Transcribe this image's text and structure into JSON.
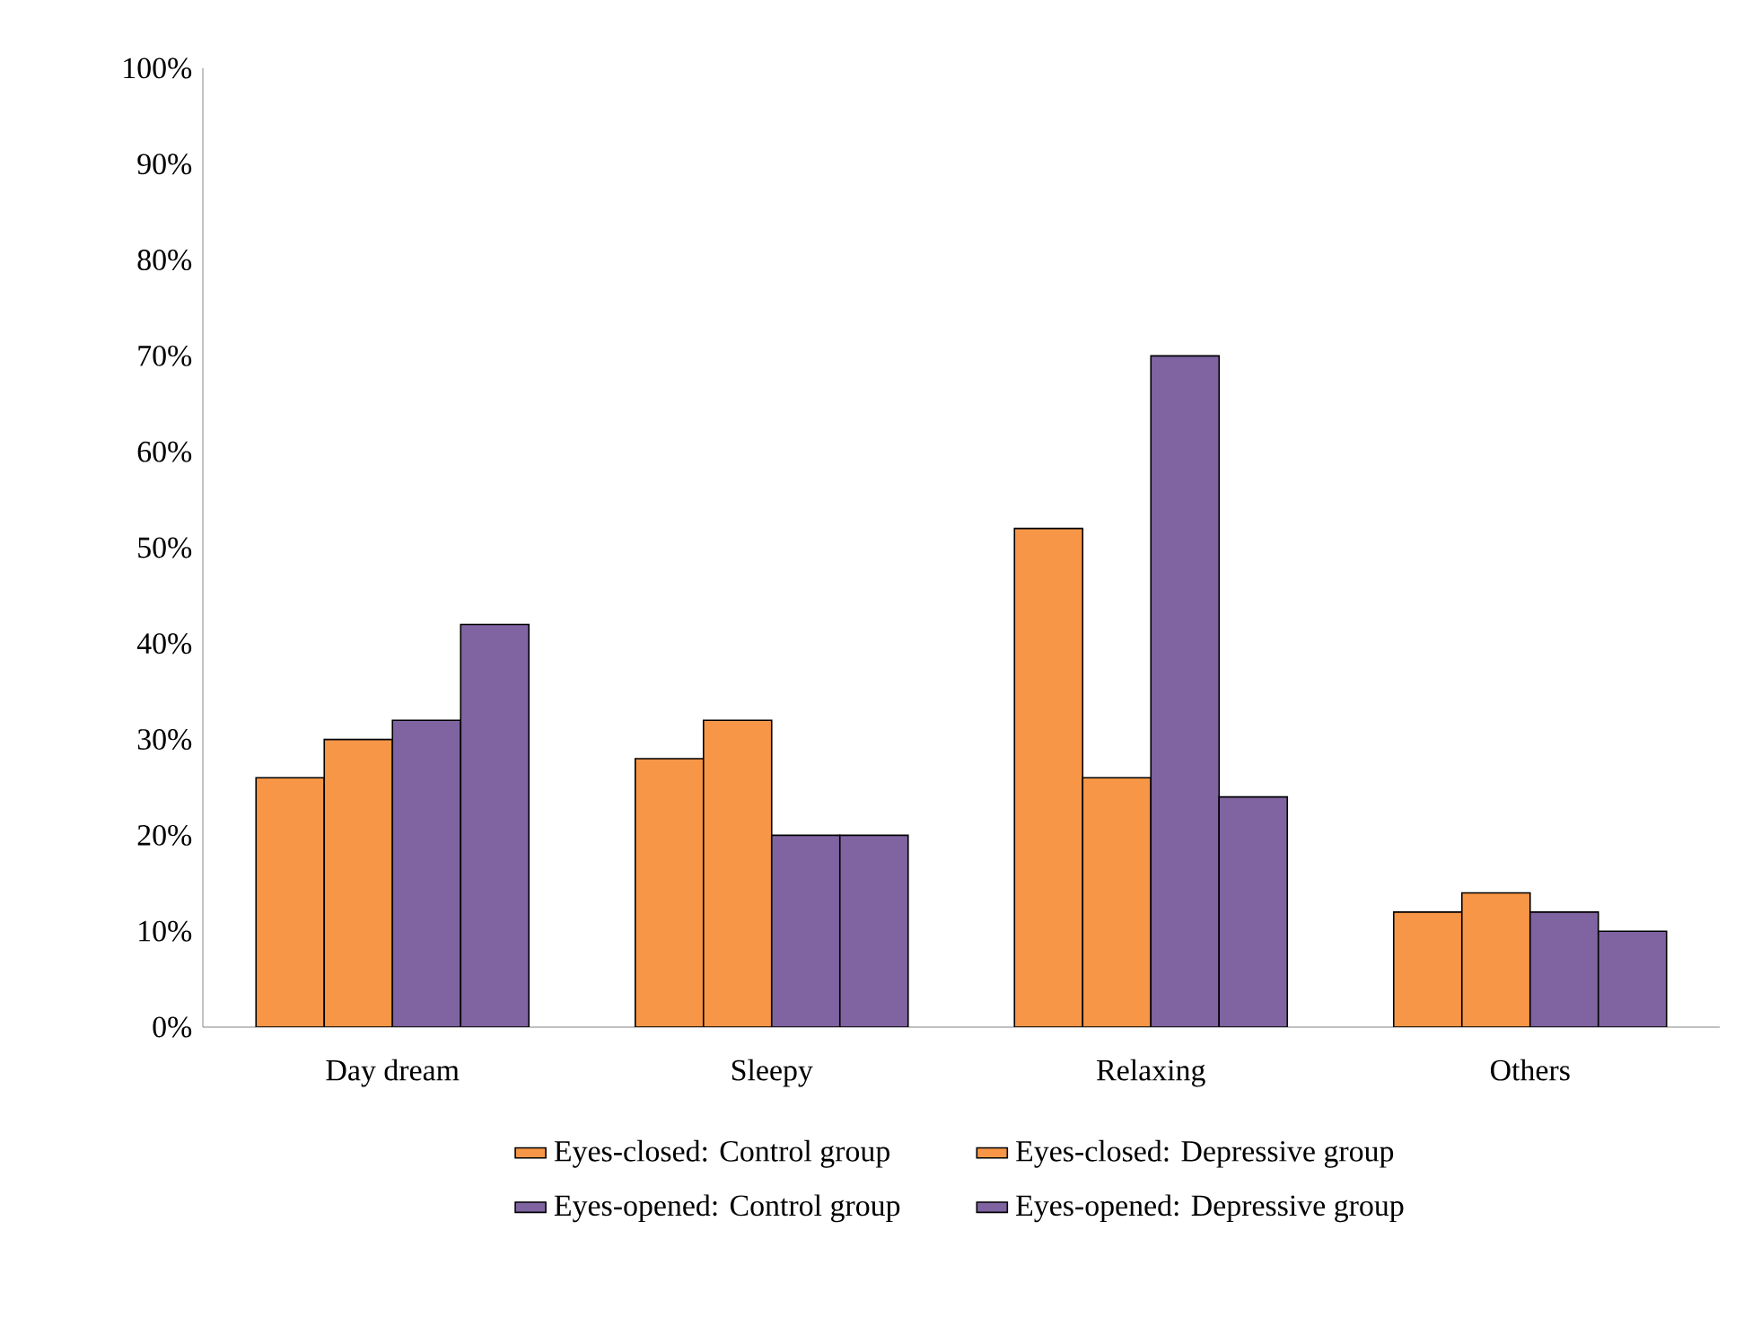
{
  "chart_data": {
    "type": "bar",
    "categories": [
      "Day dream",
      "Sleepy",
      "Relaxing",
      "Others"
    ],
    "series": [
      {
        "name": "Eyes-closed: Control group",
        "color": "#f79646",
        "values": [
          26,
          28,
          52,
          12
        ]
      },
      {
        "name": "Eyes-closed: Depressive group",
        "color": "#f79646",
        "values": [
          30,
          32,
          26,
          14
        ]
      },
      {
        "name": "Eyes-opened: Control group",
        "color": "#8064a2",
        "values": [
          32,
          20,
          70,
          12
        ]
      },
      {
        "name": "Eyes-opened: Depressive group",
        "color": "#8064a2",
        "values": [
          42,
          20,
          24,
          10
        ]
      }
    ],
    "ylim": [
      0,
      100
    ],
    "yticks": [
      {
        "value": 0,
        "label": "0%"
      },
      {
        "value": 10,
        "label": "10%"
      },
      {
        "value": 20,
        "label": "20%"
      },
      {
        "value": 30,
        "label": "30%"
      },
      {
        "value": 40,
        "label": "40%"
      },
      {
        "value": 50,
        "label": "50%"
      },
      {
        "value": 60,
        "label": "60%"
      },
      {
        "value": 70,
        "label": "70%"
      },
      {
        "value": 80,
        "label": "80%"
      },
      {
        "value": 90,
        "label": "90%"
      },
      {
        "value": 100,
        "label": "100%"
      }
    ],
    "grid": false,
    "legend": "bottom"
  }
}
